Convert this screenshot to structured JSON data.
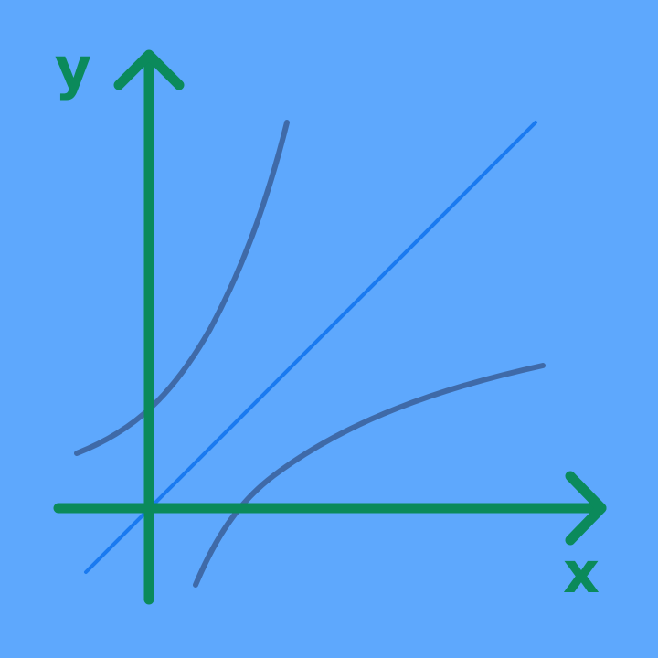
{
  "background_color": "#5ea8fd",
  "axes": {
    "color": "#0b8a5b",
    "x_label": "x",
    "y_label": "y"
  },
  "curves": {
    "exponential": {
      "color": "#3f6aa8",
      "description_icon": "exponential-curve"
    },
    "identity_line": {
      "color": "#1a7af0",
      "description_icon": "line-y-equals-x"
    },
    "logarithmic": {
      "color": "#3f6aa8",
      "description_icon": "logarithmic-curve"
    }
  }
}
